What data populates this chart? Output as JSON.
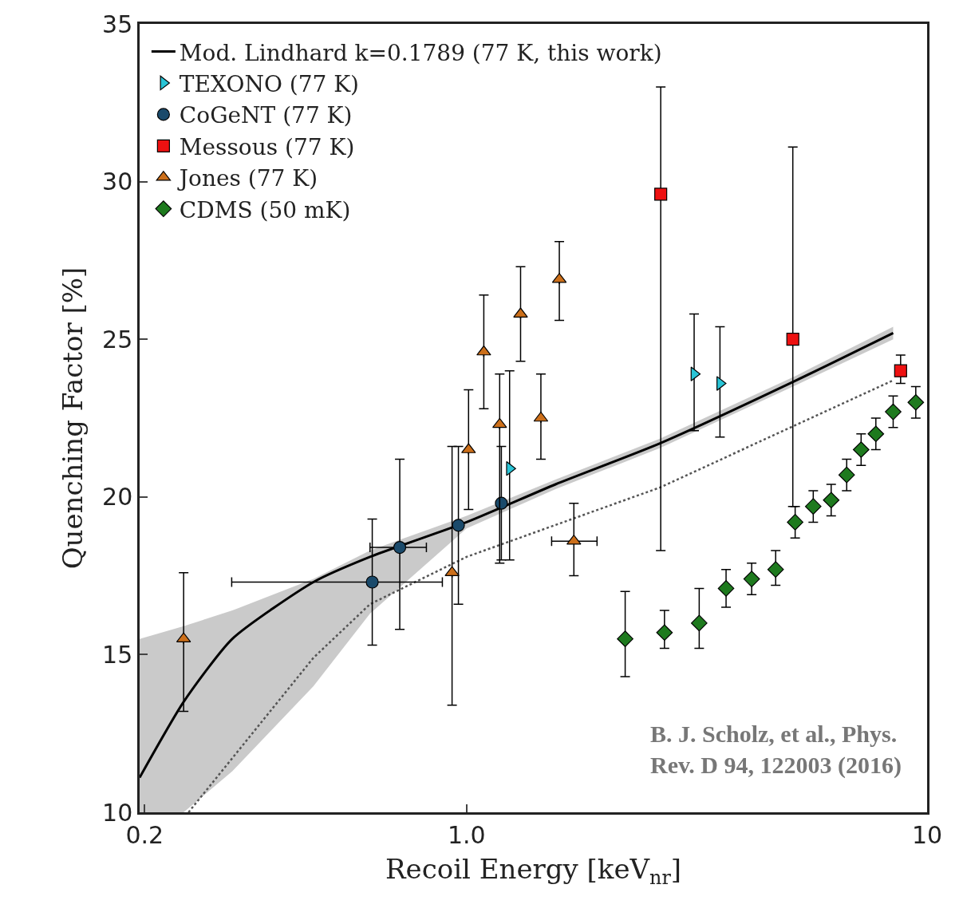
{
  "chart_data": {
    "type": "scatter",
    "xlabel": "Recoil Energy [keV$_{nr}$]",
    "ylabel": "Quenching Factor [%]",
    "log": "x",
    "xlim": [
      0.195,
      10
    ],
    "xticks": [
      {
        "value": 0.2,
        "label": "0.2"
      },
      {
        "value": 1,
        "label": "1.0"
      },
      10
    ],
    "ylim": [
      10,
      35
    ],
    "yticks": [
      10,
      15,
      20,
      25,
      30,
      35
    ],
    "legend": "top left",
    "annotations": [
      "B. J. Scholz, et al., Phys.\nRev. D 94, 122003 (2016)"
    ],
    "series": [
      {
        "type": "line",
        "name": "Mod. Lindhard k=0.1789 (77 K, this work)",
        "color": "#000000",
        "line_style": "solid",
        "marker": "none",
        "x": [
          0.195,
          0.243,
          0.31,
          0.465,
          0.617,
          1.0,
          1.56,
          2.63,
          5.2,
          8.44
        ],
        "values": [
          11.1,
          13.5,
          15.5,
          17.3,
          18.1,
          19.2,
          20.4,
          21.7,
          23.7,
          25.2
        ],
        "lower": [
          10.0,
          10.0,
          11.3,
          14.0,
          16.3,
          19.0,
          20.25,
          21.55,
          23.55,
          25.0
        ],
        "upper": [
          15.5,
          15.9,
          16.4,
          17.4,
          18.3,
          19.4,
          20.55,
          21.85,
          23.85,
          25.4
        ]
      },
      {
        "type": "line",
        "color": "#555555",
        "line_style": "dotted",
        "marker": "none",
        "x": [
          0.249,
          0.465,
          0.617,
          1.0,
          2.63,
          8.44
        ],
        "values": [
          10.0,
          14.9,
          16.6,
          18.1,
          20.3,
          23.7
        ]
      },
      {
        "name": "TEXONO (77 K)",
        "color": "#29c4d6",
        "marker": "triangle-right",
        "x": [
          1.24,
          3.12,
          3.55
        ],
        "values": [
          20.9,
          23.9,
          23.6
        ],
        "errors": [
          [
            18.0,
            24.0
          ],
          [
            22.1,
            25.8
          ],
          [
            21.9,
            25.4
          ]
        ]
      },
      {
        "name": "CoGeNT (77 K)",
        "color": "#1a4a6b",
        "marker": "circle",
        "x": [
          0.624,
          0.716,
          0.96,
          1.19
        ],
        "values": [
          17.3,
          18.4,
          19.1,
          19.8
        ],
        "errors": [
          [
            15.3,
            19.3
          ],
          [
            15.8,
            21.2
          ],
          [
            16.6,
            21.6
          ],
          [
            18.0,
            21.6
          ]
        ],
        "xerrors": [
          [
            0.309,
            0.886
          ],
          [
            0.617,
            0.818
          ],
          null,
          null
        ]
      },
      {
        "name": "Messous (77 K)",
        "color": "#ee1111",
        "marker": "square",
        "x": [
          2.64,
          5.11,
          8.76
        ],
        "values": [
          29.6,
          25.0,
          24.0
        ],
        "errors": [
          [
            18.3,
            33.0
          ],
          [
            19.7,
            31.1
          ],
          [
            23.6,
            24.5
          ]
        ]
      },
      {
        "name": "Jones (77 K)",
        "color": "#cc6f1a",
        "marker": "triangle",
        "x": [
          0.243,
          0.93,
          1.01,
          1.09,
          1.18,
          1.31,
          1.45,
          1.59,
          1.71
        ],
        "values": [
          15.5,
          17.6,
          21.5,
          24.6,
          22.3,
          25.8,
          22.5,
          26.9,
          18.6
        ],
        "errors": [
          [
            13.2,
            17.6
          ],
          [
            13.4,
            21.6
          ],
          [
            19.6,
            23.4
          ],
          [
            22.8,
            26.4
          ],
          [
            17.9,
            23.9
          ],
          [
            24.3,
            27.3
          ],
          [
            21.2,
            23.9
          ],
          [
            25.6,
            28.1
          ],
          [
            17.5,
            19.8
          ]
        ],
        "xerrors": [
          null,
          null,
          null,
          null,
          null,
          null,
          null,
          null,
          [
            1.53,
            1.92
          ]
        ]
      },
      {
        "name": "CDMS (50 mK)",
        "color": "#1e7a1e",
        "marker": "diamond",
        "x": [
          2.21,
          2.69,
          3.2,
          3.66,
          4.16,
          4.69,
          5.17,
          5.66,
          6.19,
          6.69,
          7.19,
          7.74,
          8.44,
          9.45
        ],
        "values": [
          15.5,
          15.7,
          16.0,
          17.1,
          17.4,
          17.7,
          19.2,
          19.7,
          19.9,
          20.7,
          21.5,
          22.0,
          22.7,
          23.0
        ],
        "errors": [
          [
            14.3,
            17.0
          ],
          [
            15.2,
            16.4
          ],
          [
            15.2,
            17.1
          ],
          [
            16.5,
            17.7
          ],
          [
            16.9,
            17.9
          ],
          [
            17.2,
            18.3
          ],
          [
            18.7,
            19.7
          ],
          [
            19.2,
            20.2
          ],
          [
            19.4,
            20.4
          ],
          [
            20.2,
            21.2
          ],
          [
            21.0,
            22.0
          ],
          [
            21.5,
            22.5
          ],
          [
            22.2,
            23.2
          ],
          [
            22.5,
            23.5
          ]
        ]
      }
    ]
  }
}
